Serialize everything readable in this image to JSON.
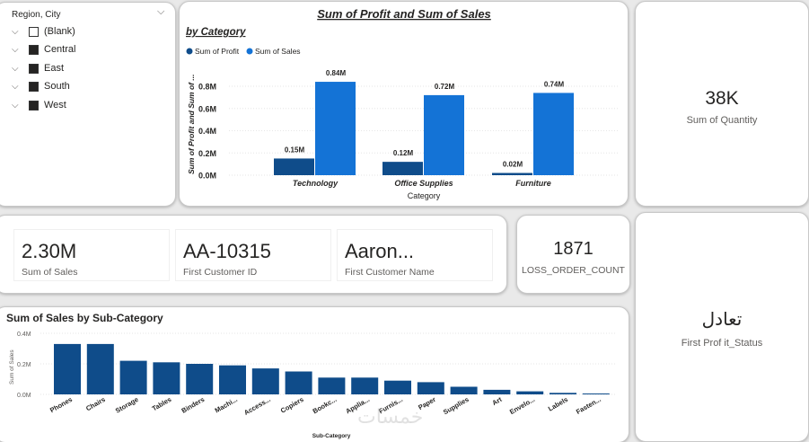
{
  "slicer": {
    "title": "Region, City",
    "items": [
      {
        "label": "(Blank)",
        "filled": false
      },
      {
        "label": "Central",
        "filled": true
      },
      {
        "label": "East",
        "filled": true
      },
      {
        "label": "South",
        "filled": true
      },
      {
        "label": "West",
        "filled": true
      }
    ]
  },
  "category_chart": {
    "title": "Sum of Profit and Sum of Sales",
    "subtitle": "by Category",
    "legend": [
      "Sum of Profit",
      "Sum of Sales"
    ],
    "colors": {
      "profit": "#0f4c8a",
      "sales": "#1473d6"
    }
  },
  "quantity": {
    "value": "38K",
    "label": "Sum of Quantity"
  },
  "summary": {
    "sales_value": "2.30M",
    "sales_label": "Sum of Sales",
    "customer_id_value": "AA-10315",
    "customer_id_label": "First Customer ID",
    "customer_name_value": "Aaron...",
    "customer_name_label": "First Customer Name"
  },
  "loss": {
    "value": "1871",
    "label": "LOSS_ORDER_COUNT"
  },
  "status": {
    "value": "تعادل",
    "label": "First Prof it_Status"
  },
  "subcategory_chart": {
    "title": "Sum of Sales by Sub-Category",
    "color": "#0f4c8a"
  },
  "watermark": "خمسات",
  "chart_data": [
    {
      "type": "bar",
      "title": "Sum of Profit and Sum of Sales",
      "subtitle": "by Category",
      "xlabel": "Category",
      "ylabel": "Sum of Profit and Sum of ...",
      "categories": [
        "Technology",
        "Office Supplies",
        "Furniture"
      ],
      "series": [
        {
          "name": "Sum of Profit",
          "values": [
            0.15,
            0.12,
            0.02
          ],
          "labels": [
            "0.15M",
            "0.12M",
            "0.02M"
          ]
        },
        {
          "name": "Sum of Sales",
          "values": [
            0.84,
            0.72,
            0.74
          ],
          "labels": [
            "0.84M",
            "0.72M",
            "0.74M"
          ]
        }
      ],
      "yticks": [
        "0.0M",
        "0.2M",
        "0.4M",
        "0.6M",
        "0.8M"
      ],
      "ylim": [
        0,
        0.84
      ],
      "legend": "top-left"
    },
    {
      "type": "bar",
      "title": "Sum of Sales by Sub-Category",
      "xlabel": "Sub-Category",
      "ylabel": "Sum of Sales",
      "categories": [
        "Phones",
        "Chairs",
        "Storage",
        "Tables",
        "Binders",
        "Machi...",
        "Access...",
        "Copiers",
        "Bookc...",
        "Applia...",
        "Furnis...",
        "Paper",
        "Supplies",
        "Art",
        "Envelo...",
        "Labels",
        "Fasten..."
      ],
      "values": [
        0.33,
        0.33,
        0.22,
        0.21,
        0.2,
        0.19,
        0.17,
        0.15,
        0.11,
        0.11,
        0.09,
        0.08,
        0.05,
        0.03,
        0.02,
        0.01,
        0.003
      ],
      "yticks": [
        "0.0M",
        "0.2M",
        "0.4M"
      ],
      "ylim": [
        0,
        0.4
      ]
    }
  ]
}
